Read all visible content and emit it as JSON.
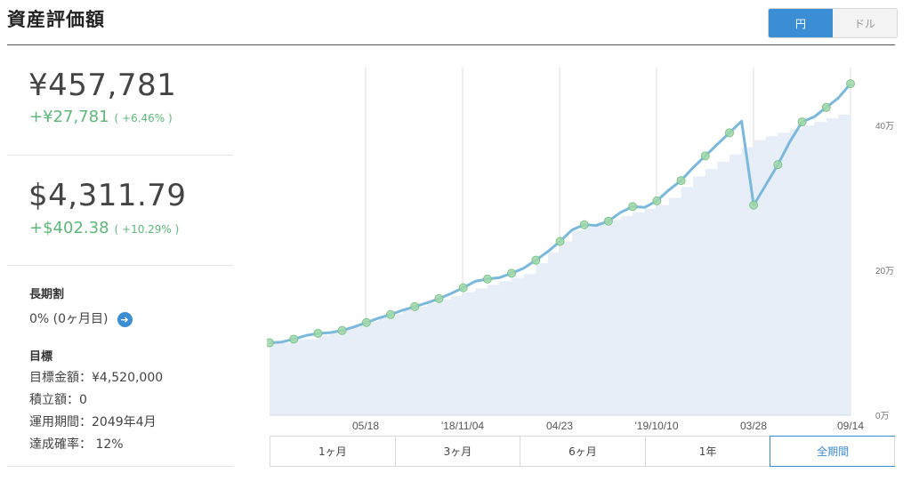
{
  "header": {
    "title": "資産評価額"
  },
  "currency_toggle": {
    "options": [
      "円",
      "ドル"
    ],
    "selected": "円"
  },
  "summary": {
    "yen_total": "¥457,781",
    "yen_change": "+¥27,781",
    "yen_change_pct": "( +6.46% )",
    "usd_total": "$4,311.79",
    "usd_change": "+$402.38",
    "usd_change_pct": "( +10.29% )"
  },
  "long_term_discount": {
    "label": "長期割",
    "value": "0% (0ヶ月目)"
  },
  "goal": {
    "label": "目標",
    "target_amount": "目標金額：¥4,520,000",
    "contribution": "積立額：0",
    "period": "運用期間：2049年4月",
    "probability": "達成確率： 12%"
  },
  "period_tabs": {
    "items": [
      "1ヶ月",
      "3ヶ月",
      "6ヶ月",
      "1年",
      "全期間"
    ],
    "selected": "全期間"
  },
  "chart_data": {
    "type": "line",
    "x_tick_labels": [
      "05/18",
      "'18/11/04",
      "04/23",
      "'19/10/10",
      "03/28",
      "09/14"
    ],
    "y_tick_labels": [
      "0万",
      "20万",
      "40万"
    ],
    "ylim": [
      0,
      480000
    ],
    "grid": true,
    "series": [
      {
        "kind": "line",
        "color": "#7ab8de",
        "values": [
          100000,
          101000,
          105000,
          110000,
          113000,
          114000,
          117000,
          122000,
          128000,
          134000,
          139000,
          145000,
          150000,
          155000,
          161000,
          168000,
          176000,
          185000,
          188000,
          190000,
          196000,
          203000,
          214000,
          226000,
          240000,
          256000,
          263000,
          262000,
          268000,
          280000,
          288000,
          287000,
          296000,
          311000,
          324000,
          342000,
          358000,
          374000,
          390000,
          406000,
          290000,
          318000,
          346000,
          378000,
          405000,
          412000,
          425000,
          438000,
          457781
        ]
      },
      {
        "kind": "area",
        "color": "#e8eef7",
        "values": [
          100000,
          100000,
          105000,
          105000,
          110000,
          115000,
          120000,
          125000,
          130000,
          135000,
          140000,
          145000,
          150000,
          155000,
          160000,
          165000,
          170000,
          175000,
          180000,
          185000,
          190000,
          195000,
          210000,
          225000,
          240000,
          255000,
          260000,
          265000,
          270000,
          275000,
          280000,
          285000,
          290000,
          300000,
          315000,
          330000,
          340000,
          350000,
          360000,
          370000,
          380000,
          385000,
          390000,
          395000,
          400000,
          405000,
          410000,
          415000,
          430000
        ]
      }
    ]
  }
}
